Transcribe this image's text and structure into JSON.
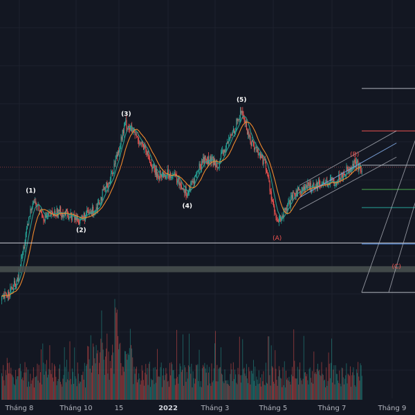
{
  "colors": {
    "background": "#131722",
    "grid": "#1e222d",
    "up": "#26a69a",
    "down": "#ef5350",
    "ma_fast": "#2a9d8f",
    "ma_slow": "#f28a2e",
    "impulse_label": "#ffffff",
    "correction_label": "#ef5350",
    "support_line": "#d1d4dc",
    "support_zone": "#4a5150",
    "fib_red": "#ef5350",
    "fib_green": "#4caf50",
    "fib_teal": "#26a69a",
    "fib_gray": "#b2b5be",
    "fib_blue": "#5b9cf6",
    "current_price_line": "#ef5350"
  },
  "chart_data": {
    "type": "candlestick",
    "title": "",
    "xlabel": "",
    "ylabel": "",
    "x_ticks": [
      {
        "label": "Tháng 8",
        "bold": false
      },
      {
        "label": "Tháng 10",
        "bold": false
      },
      {
        "label": "15",
        "bold": false
      },
      {
        "label": "2022",
        "bold": true
      },
      {
        "label": "Tháng 3",
        "bold": false
      },
      {
        "label": "Tháng 5",
        "bold": false
      },
      {
        "label": "Tháng 7",
        "bold": false
      },
      {
        "label": "Tháng 9",
        "bold": false
      }
    ],
    "price_range": [
      0,
      100
    ],
    "waypoints": [
      {
        "t": 0,
        "p": 6
      },
      {
        "t": 20,
        "p": 15
      },
      {
        "t": 40,
        "p": 56
      },
      {
        "t": 55,
        "p": 47
      },
      {
        "t": 75,
        "p": 50
      },
      {
        "t": 100,
        "p": 46
      },
      {
        "t": 120,
        "p": 51
      },
      {
        "t": 140,
        "p": 66
      },
      {
        "t": 160,
        "p": 94
      },
      {
        "t": 180,
        "p": 84
      },
      {
        "t": 200,
        "p": 68
      },
      {
        "t": 220,
        "p": 69
      },
      {
        "t": 240,
        "p": 59
      },
      {
        "t": 260,
        "p": 76
      },
      {
        "t": 280,
        "p": 74
      },
      {
        "t": 300,
        "p": 91
      },
      {
        "t": 310,
        "p": 100
      },
      {
        "t": 320,
        "p": 86
      },
      {
        "t": 340,
        "p": 74
      },
      {
        "t": 355,
        "p": 44
      },
      {
        "t": 366,
        "p": 50
      },
      {
        "t": 380,
        "p": 60
      },
      {
        "t": 410,
        "p": 64
      },
      {
        "t": 430,
        "p": 65
      },
      {
        "t": 455,
        "p": 74
      },
      {
        "t": 465,
        "p": 71
      }
    ],
    "wave_labels": [
      {
        "text": "(1)",
        "t": 38,
        "p": 58,
        "type": "impulse",
        "pos": "above"
      },
      {
        "text": "(2)",
        "t": 103,
        "p": 44,
        "type": "impulse",
        "pos": "below"
      },
      {
        "text": "(3)",
        "t": 161,
        "p": 96,
        "type": "impulse",
        "pos": "above"
      },
      {
        "text": "(4)",
        "t": 240,
        "p": 56,
        "type": "impulse",
        "pos": "below"
      },
      {
        "text": "(5)",
        "t": 310,
        "p": 103,
        "type": "impulse",
        "pos": "above"
      },
      {
        "text": "(A)",
        "t": 356,
        "p": 40,
        "type": "correction",
        "pos": "below"
      },
      {
        "text": "(B)",
        "t": 456,
        "p": 76,
        "type": "correction",
        "pos": "above"
      },
      {
        "text": "(C)",
        "t": 510,
        "p": 26,
        "type": "correction",
        "pos": "below"
      }
    ],
    "horizontal_levels": [
      {
        "p": 34.5,
        "kind": "support",
        "start_t": 0
      },
      {
        "p": 72,
        "kind": "current_price",
        "start_t": 0
      }
    ],
    "support_zone": {
      "p_low": 20,
      "p_high": 23
    },
    "fib_levels": [
      {
        "p": 111,
        "color": "fib_gray"
      },
      {
        "p": 90,
        "color": "fib_red"
      },
      {
        "p": 73,
        "color": "fib_gray"
      },
      {
        "p": 61,
        "color": "fib_green"
      },
      {
        "p": 52,
        "color": "fib_teal"
      },
      {
        "p": 34,
        "color": "fib_blue"
      },
      {
        "p": 10,
        "color": "fib_gray"
      }
    ],
    "channel": {
      "start_t": 385,
      "end_t": 510,
      "lines": [
        {
          "p0": 63,
          "p1": 90
        },
        {
          "p0": 57,
          "p1": 84
        },
        {
          "p0": 51,
          "p1": 77
        }
      ]
    },
    "projection_channel": {
      "lines": [
        {
          "t0": 465,
          "p0": 10,
          "t1": 520,
          "p1": 55
        },
        {
          "t0": 500,
          "p0": 10,
          "t1": 520,
          "p1": 25
        }
      ]
    },
    "volume": {
      "max": 100
    }
  }
}
